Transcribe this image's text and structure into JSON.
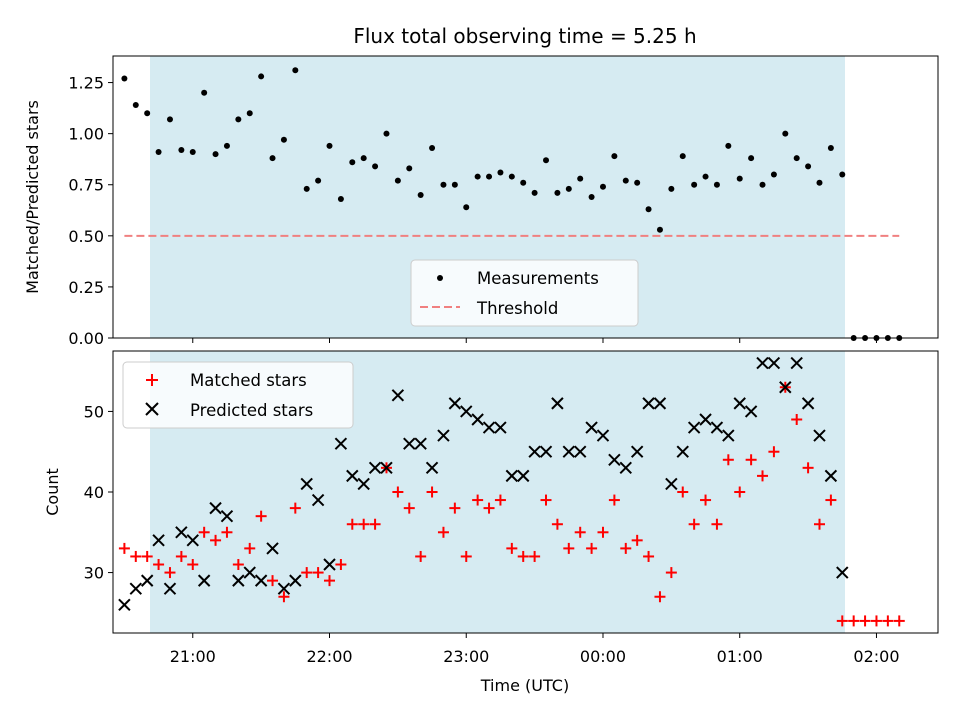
{
  "chart_data": [
    {
      "type": "scatter",
      "title": "Flux total observing time = 5.25 h",
      "xlabel": "",
      "ylabel": "Matched/Predicted stars",
      "ylim": [
        0,
        1.38
      ],
      "y_ticks": [
        "0.00",
        "0.25",
        "0.50",
        "0.75",
        "1.00",
        "1.25"
      ],
      "y_tick_values": [
        0,
        0.25,
        0.5,
        0.75,
        1.0,
        1.25
      ],
      "x_range": [
        "20:25",
        "02:27"
      ],
      "grid": false,
      "legend_position": "lower center",
      "observing_window": {
        "start": "20:30",
        "end": "01:45",
        "color": "#add8e6"
      },
      "series": [
        {
          "name": "Measurements",
          "color": "#000000",
          "marker": "dot",
          "points": [
            [
              "20:30",
              1.27
            ],
            [
              "20:35",
              1.14
            ],
            [
              "20:40",
              1.1
            ],
            [
              "20:45",
              0.91
            ],
            [
              "20:50",
              1.07
            ],
            [
              "20:55",
              0.92
            ],
            [
              "21:00",
              0.91
            ],
            [
              "21:05",
              1.2
            ],
            [
              "21:10",
              0.9
            ],
            [
              "21:15",
              0.94
            ],
            [
              "21:20",
              1.07
            ],
            [
              "21:25",
              1.1
            ],
            [
              "21:30",
              1.28
            ],
            [
              "21:35",
              0.88
            ],
            [
              "21:40",
              0.97
            ],
            [
              "21:45",
              1.31
            ],
            [
              "21:50",
              0.73
            ],
            [
              "21:55",
              0.77
            ],
            [
              "22:00",
              0.94
            ],
            [
              "22:05",
              0.68
            ],
            [
              "22:10",
              0.86
            ],
            [
              "22:15",
              0.88
            ],
            [
              "22:20",
              0.84
            ],
            [
              "22:25",
              1.0
            ],
            [
              "22:30",
              0.77
            ],
            [
              "22:35",
              0.83
            ],
            [
              "22:40",
              0.7
            ],
            [
              "22:45",
              0.93
            ],
            [
              "22:50",
              0.75
            ],
            [
              "22:55",
              0.75
            ],
            [
              "23:00",
              0.64
            ],
            [
              "23:05",
              0.79
            ],
            [
              "23:10",
              0.79
            ],
            [
              "23:15",
              0.81
            ],
            [
              "23:20",
              0.79
            ],
            [
              "23:25",
              0.76
            ],
            [
              "23:30",
              0.71
            ],
            [
              "23:35",
              0.87
            ],
            [
              "23:40",
              0.71
            ],
            [
              "23:45",
              0.73
            ],
            [
              "23:50",
              0.78
            ],
            [
              "23:55",
              0.69
            ],
            [
              "00:00",
              0.74
            ],
            [
              "00:05",
              0.89
            ],
            [
              "00:10",
              0.77
            ],
            [
              "00:15",
              0.76
            ],
            [
              "00:20",
              0.63
            ],
            [
              "00:25",
              0.53
            ],
            [
              "00:30",
              0.73
            ],
            [
              "00:35",
              0.89
            ],
            [
              "00:40",
              0.75
            ],
            [
              "00:45",
              0.79
            ],
            [
              "00:50",
              0.75
            ],
            [
              "00:55",
              0.94
            ],
            [
              "01:00",
              0.78
            ],
            [
              "01:05",
              0.88
            ],
            [
              "01:10",
              0.75
            ],
            [
              "01:15",
              0.8
            ],
            [
              "01:20",
              1.0
            ],
            [
              "01:25",
              0.88
            ],
            [
              "01:30",
              0.84
            ],
            [
              "01:35",
              0.76
            ],
            [
              "01:40",
              0.93
            ],
            [
              "01:45",
              0.8
            ],
            [
              "01:50",
              0.0
            ],
            [
              "01:55",
              0.0
            ],
            [
              "02:00",
              0.0
            ],
            [
              "02:05",
              0.0
            ],
            [
              "02:10",
              0.0
            ]
          ]
        },
        {
          "name": "Threshold",
          "color": "#f08080",
          "style": "dashed",
          "points": [
            [
              "20:30",
              0.5
            ],
            [
              "02:10",
              0.5
            ]
          ]
        }
      ]
    },
    {
      "type": "scatter",
      "title": "",
      "xlabel": "Time (UTC)",
      "ylabel": "Count",
      "ylim": [
        22.5,
        57.5
      ],
      "y_ticks": [
        "30",
        "40",
        "50"
      ],
      "y_tick_values": [
        30,
        40,
        50
      ],
      "x_ticks": [
        "21:00",
        "22:00",
        "23:00",
        "00:00",
        "01:00",
        "02:00"
      ],
      "x_tick_values": [
        "21:00",
        "22:00",
        "23:00",
        "00:00",
        "01:00",
        "02:00"
      ],
      "x_range": [
        "20:25",
        "02:27"
      ],
      "grid": false,
      "legend_position": "upper left",
      "observing_window": {
        "start": "20:30",
        "end": "01:45",
        "color": "#add8e6"
      },
      "series": [
        {
          "name": "Matched stars",
          "color": "#ff0000",
          "marker": "plus",
          "points": [
            [
              "20:30",
              33
            ],
            [
              "20:35",
              32
            ],
            [
              "20:40",
              32
            ],
            [
              "20:45",
              31
            ],
            [
              "20:50",
              30
            ],
            [
              "20:55",
              32
            ],
            [
              "21:00",
              31
            ],
            [
              "21:05",
              35
            ],
            [
              "21:10",
              34
            ],
            [
              "21:15",
              35
            ],
            [
              "21:20",
              31
            ],
            [
              "21:25",
              33
            ],
            [
              "21:30",
              37
            ],
            [
              "21:35",
              29
            ],
            [
              "21:40",
              27
            ],
            [
              "21:45",
              38
            ],
            [
              "21:50",
              30
            ],
            [
              "21:55",
              30
            ],
            [
              "22:00",
              29
            ],
            [
              "22:05",
              31
            ],
            [
              "22:10",
              36
            ],
            [
              "22:15",
              36
            ],
            [
              "22:20",
              36
            ],
            [
              "22:25",
              43
            ],
            [
              "22:30",
              40
            ],
            [
              "22:35",
              38
            ],
            [
              "22:40",
              32
            ],
            [
              "22:45",
              40
            ],
            [
              "22:50",
              35
            ],
            [
              "22:55",
              38
            ],
            [
              "23:00",
              32
            ],
            [
              "23:05",
              39
            ],
            [
              "23:10",
              38
            ],
            [
              "23:15",
              39
            ],
            [
              "23:20",
              33
            ],
            [
              "23:25",
              32
            ],
            [
              "23:30",
              32
            ],
            [
              "23:35",
              39
            ],
            [
              "23:40",
              36
            ],
            [
              "23:45",
              33
            ],
            [
              "23:50",
              35
            ],
            [
              "23:55",
              33
            ],
            [
              "00:00",
              35
            ],
            [
              "00:05",
              39
            ],
            [
              "00:10",
              33
            ],
            [
              "00:15",
              34
            ],
            [
              "00:20",
              32
            ],
            [
              "00:25",
              27
            ],
            [
              "00:30",
              30
            ],
            [
              "00:35",
              40
            ],
            [
              "00:40",
              36
            ],
            [
              "00:45",
              39
            ],
            [
              "00:50",
              36
            ],
            [
              "00:55",
              44
            ],
            [
              "01:00",
              40
            ],
            [
              "01:05",
              44
            ],
            [
              "01:10",
              42
            ],
            [
              "01:15",
              45
            ],
            [
              "01:20",
              53
            ],
            [
              "01:25",
              49
            ],
            [
              "01:30",
              43
            ],
            [
              "01:35",
              36
            ],
            [
              "01:40",
              39
            ],
            [
              "01:45",
              24
            ],
            [
              "01:50",
              24
            ],
            [
              "01:55",
              24
            ],
            [
              "02:00",
              24
            ],
            [
              "02:05",
              24
            ],
            [
              "02:10",
              24
            ]
          ]
        },
        {
          "name": "Predicted stars",
          "color": "#000000",
          "marker": "x",
          "points": [
            [
              "20:30",
              26
            ],
            [
              "20:35",
              28
            ],
            [
              "20:40",
              29
            ],
            [
              "20:45",
              34
            ],
            [
              "20:50",
              28
            ],
            [
              "20:55",
              35
            ],
            [
              "21:00",
              34
            ],
            [
              "21:05",
              29
            ],
            [
              "21:10",
              38
            ],
            [
              "21:15",
              37
            ],
            [
              "21:20",
              29
            ],
            [
              "21:25",
              30
            ],
            [
              "21:30",
              29
            ],
            [
              "21:35",
              33
            ],
            [
              "21:40",
              28
            ],
            [
              "21:45",
              29
            ],
            [
              "21:50",
              41
            ],
            [
              "21:55",
              39
            ],
            [
              "22:00",
              31
            ],
            [
              "22:05",
              46
            ],
            [
              "22:10",
              42
            ],
            [
              "22:15",
              41
            ],
            [
              "22:20",
              43
            ],
            [
              "22:25",
              43
            ],
            [
              "22:30",
              52
            ],
            [
              "22:35",
              46
            ],
            [
              "22:40",
              46
            ],
            [
              "22:45",
              43
            ],
            [
              "22:50",
              47
            ],
            [
              "22:55",
              51
            ],
            [
              "23:00",
              50
            ],
            [
              "23:05",
              49
            ],
            [
              "23:10",
              48
            ],
            [
              "23:15",
              48
            ],
            [
              "23:20",
              42
            ],
            [
              "23:25",
              42
            ],
            [
              "23:30",
              45
            ],
            [
              "23:35",
              45
            ],
            [
              "23:40",
              51
            ],
            [
              "23:45",
              45
            ],
            [
              "23:50",
              45
            ],
            [
              "23:55",
              48
            ],
            [
              "00:00",
              47
            ],
            [
              "00:05",
              44
            ],
            [
              "00:10",
              43
            ],
            [
              "00:15",
              45
            ],
            [
              "00:20",
              51
            ],
            [
              "00:25",
              51
            ],
            [
              "00:30",
              41
            ],
            [
              "00:35",
              45
            ],
            [
              "00:40",
              48
            ],
            [
              "00:45",
              49
            ],
            [
              "00:50",
              48
            ],
            [
              "00:55",
              47
            ],
            [
              "01:00",
              51
            ],
            [
              "01:05",
              50
            ],
            [
              "01:10",
              56
            ],
            [
              "01:15",
              56
            ],
            [
              "01:20",
              53
            ],
            [
              "01:25",
              56
            ],
            [
              "01:30",
              51
            ],
            [
              "01:35",
              47
            ],
            [
              "01:40",
              42
            ],
            [
              "01:45",
              30
            ]
          ]
        }
      ]
    }
  ]
}
